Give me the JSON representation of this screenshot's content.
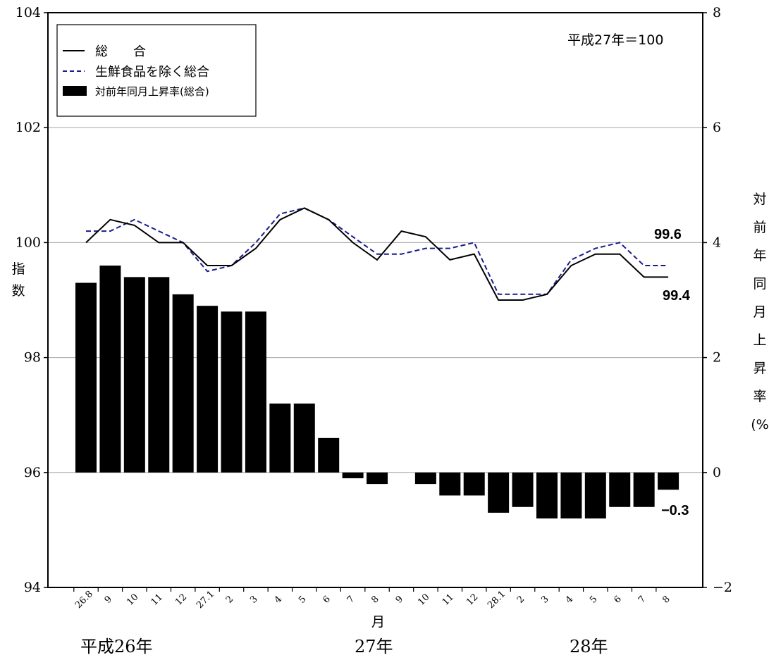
{
  "chart_data": {
    "type": "bar",
    "categories": [
      "26.8",
      "9",
      "10",
      "11",
      "12",
      "27.1",
      "2",
      "3",
      "4",
      "5",
      "6",
      "7",
      "8",
      "9",
      "10",
      "11",
      "12",
      "28.1",
      "2",
      "3",
      "4",
      "5",
      "6",
      "7",
      "8"
    ],
    "y_left": {
      "ticks": [
        "104",
        "102",
        "100",
        "98",
        "96",
        "94"
      ],
      "ylim": [
        94,
        104
      ],
      "label_chars": [
        "指",
        "数"
      ]
    },
    "y_right": {
      "ticks": [
        "8",
        "6",
        "4",
        "2",
        "0",
        "−2"
      ],
      "ylim": [
        -2,
        8
      ],
      "label_chars": [
        "対",
        "前",
        "年",
        "同",
        "月",
        "上",
        "昇",
        "率",
        "(%"
      ]
    },
    "x_label": "月",
    "year_labels": [
      "平成26年",
      "27年",
      "28年"
    ],
    "base_note": "平成27年＝100",
    "grid": true,
    "legend_position": "top-left",
    "legend": {
      "total": "総　　合",
      "core": "生鮮食品を除く総合",
      "yoy": "対前年同月上昇率(総合)"
    },
    "series": [
      {
        "name": "総　　合",
        "axis": "left",
        "style": "solid",
        "color": "#000000",
        "values": [
          100.0,
          100.4,
          100.3,
          100.0,
          100.0,
          99.6,
          99.6,
          99.9,
          100.4,
          100.6,
          100.4,
          100.0,
          99.7,
          100.2,
          100.1,
          99.7,
          99.8,
          99.0,
          99.0,
          99.1,
          99.6,
          99.8,
          99.8,
          99.4,
          99.4
        ]
      },
      {
        "name": "生鮮食品を除く総合",
        "axis": "left",
        "style": "dashed",
        "color": "#1a1a8c",
        "values": [
          100.2,
          100.2,
          100.4,
          100.2,
          100.0,
          99.5,
          99.6,
          100.0,
          100.5,
          100.6,
          100.4,
          100.1,
          99.8,
          99.8,
          99.9,
          99.9,
          100.0,
          99.1,
          99.1,
          99.1,
          99.7,
          99.9,
          100.0,
          99.6,
          99.6
        ]
      },
      {
        "name": "対前年同月上昇率(総合)",
        "axis": "right",
        "style": "bar",
        "color": "#000000",
        "values": [
          3.3,
          3.6,
          3.4,
          3.4,
          3.1,
          2.9,
          2.8,
          2.8,
          1.2,
          1.2,
          0.6,
          -0.1,
          -0.2,
          0.0,
          -0.2,
          -0.4,
          -0.4,
          -0.7,
          -0.6,
          -0.8,
          -0.8,
          -0.8,
          -0.6,
          -0.6,
          -0.3
        ]
      }
    ],
    "annotations": {
      "core_last": "99.6",
      "total_last": "99.4",
      "yoy_last": "−0.3"
    }
  }
}
